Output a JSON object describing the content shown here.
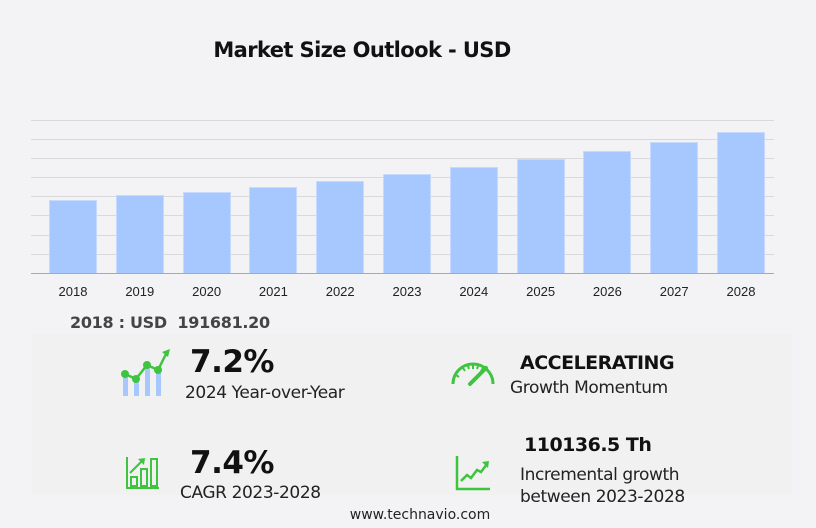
{
  "title": "Market Size Outlook  - USD",
  "chart_data": {
    "type": "bar",
    "title": "Market Size Outlook - USD",
    "xlabel": "",
    "ylabel": "",
    "categories": [
      "2018",
      "2019",
      "2020",
      "2021",
      "2022",
      "2023",
      "2024",
      "2025",
      "2026",
      "2027",
      "2028"
    ],
    "values": [
      191681.2,
      204800,
      212700,
      225800,
      241600,
      259900,
      278600,
      299100,
      321300,
      345000,
      370000
    ],
    "ylim": [
      0,
      400000
    ],
    "grid": true,
    "legend": "none",
    "bar_color": "#a6c8fe"
  },
  "xlabels": [
    "2018",
    "2019",
    "2020",
    "2021",
    "2022",
    "2023",
    "2024",
    "2025",
    "2026",
    "2027",
    "2028"
  ],
  "base_value": "2018 : USD  191681.20",
  "stats": {
    "yoy": {
      "value": "7.2%",
      "label": "2024 Year-over-Year",
      "icon": "growth-chart-icon"
    },
    "momentum": {
      "value": "ACCELERATING",
      "label": "Growth Momentum",
      "icon": "speedometer-icon"
    },
    "cagr": {
      "value": "7.4%",
      "label": "CAGR 2023-2028",
      "icon": "bar-chart-arrow-icon"
    },
    "incremental": {
      "value": "110136.5 Th",
      "label_line1": "Incremental growth",
      "label_line2": "between 2023-2028",
      "icon": "line-trend-icon"
    }
  },
  "colors": {
    "accent_green": "#3ec43e",
    "bar": "#a6c8fe",
    "background": "#f3f3f5"
  },
  "footer": "www.technavio.com"
}
